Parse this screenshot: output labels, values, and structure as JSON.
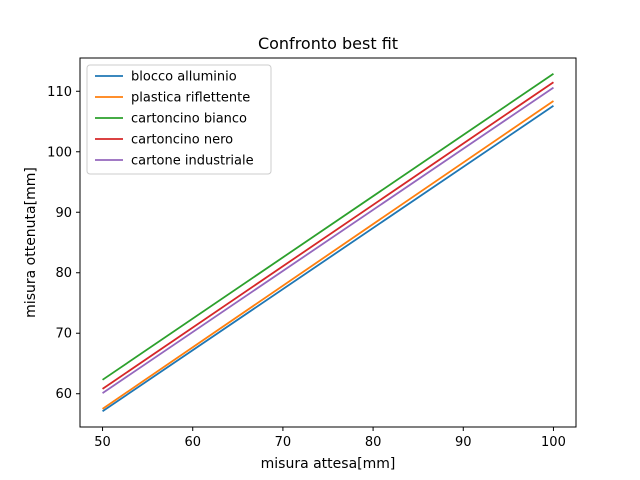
{
  "chart_data": {
    "type": "line",
    "title": "Confronto best fit",
    "xlabel": "misura attesa[mm]",
    "ylabel": "misura ottenuta[mm]",
    "xlim": [
      47.5,
      102.5
    ],
    "ylim": [
      54.5,
      115.5
    ],
    "xticks": [
      50,
      60,
      70,
      80,
      90,
      100
    ],
    "yticks": [
      60,
      70,
      80,
      90,
      100,
      110
    ],
    "grid": false,
    "legend_position": "top-left",
    "x": [
      50,
      100
    ],
    "series": [
      {
        "name": "blocco alluminio",
        "color": "#1f77b4",
        "values": [
          57.1,
          107.6
        ]
      },
      {
        "name": "plastica riflettente",
        "color": "#ff7f0e",
        "values": [
          57.5,
          108.4
        ]
      },
      {
        "name": "cartoncino bianco",
        "color": "#2ca02c",
        "values": [
          62.3,
          112.9
        ]
      },
      {
        "name": "cartoncino nero",
        "color": "#d62728",
        "values": [
          60.8,
          111.5
        ]
      },
      {
        "name": "cartone industriale",
        "color": "#9467bd",
        "values": [
          60.1,
          110.6
        ]
      }
    ]
  }
}
